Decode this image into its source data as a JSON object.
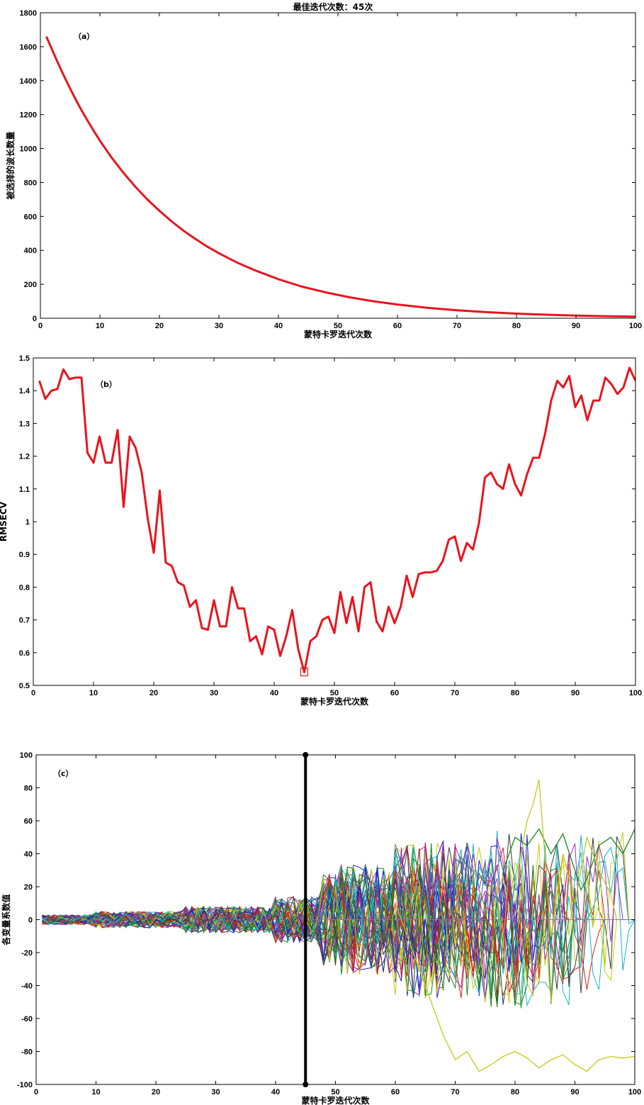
{
  "title": "最佳迭代次数：45次",
  "chart_data": [
    {
      "type": "line",
      "annotation": "（a）",
      "xlabel": "蒙特卡罗迭代次数",
      "ylabel": "被选择的波长数量",
      "xlim": [
        0,
        100
      ],
      "ylim": [
        0,
        1800
      ],
      "xticks": [
        0,
        10,
        20,
        30,
        40,
        50,
        60,
        70,
        80,
        90,
        100
      ],
      "yticks": [
        0,
        200,
        400,
        600,
        800,
        1000,
        1200,
        1400,
        1600,
        1800
      ],
      "color": "#e8141e",
      "x": [
        1,
        2,
        3,
        4,
        5,
        6,
        7,
        8,
        9,
        10,
        12,
        14,
        16,
        18,
        20,
        22,
        24,
        26,
        28,
        30,
        33,
        36,
        40,
        44,
        48,
        52,
        56,
        60,
        65,
        70,
        75,
        80,
        85,
        90,
        95,
        100
      ],
      "values": [
        1660,
        1580,
        1500,
        1425,
        1353,
        1285,
        1220,
        1160,
        1102,
        1046,
        945,
        855,
        773,
        699,
        633,
        572,
        517,
        468,
        423,
        383,
        329,
        283,
        230,
        186,
        152,
        123,
        100,
        81,
        62,
        47,
        36,
        27,
        21,
        16,
        12,
        9
      ]
    },
    {
      "type": "line",
      "annotation": "（b）",
      "xlabel": "蒙特卡罗迭代次数",
      "ylabel": "RMSECV",
      "xlim": [
        0,
        100
      ],
      "ylim": [
        0.5,
        1.5
      ],
      "xticks": [
        0,
        10,
        20,
        30,
        40,
        50,
        60,
        70,
        80,
        90,
        100
      ],
      "yticks": [
        0.5,
        0.6,
        0.7,
        0.8,
        0.9,
        1,
        1.1,
        1.2,
        1.3,
        1.4,
        1.5
      ],
      "color": "#e8141e",
      "marker": {
        "x": 45,
        "y": 0.54
      },
      "x": [
        1,
        2,
        3,
        4,
        5,
        6,
        7,
        8,
        9,
        10,
        11,
        12,
        13,
        14,
        15,
        16,
        17,
        18,
        19,
        20,
        21,
        22,
        23,
        24,
        25,
        26,
        27,
        28,
        29,
        30,
        31,
        32,
        33,
        34,
        35,
        36,
        37,
        38,
        39,
        40,
        41,
        42,
        43,
        44,
        45,
        46,
        47,
        48,
        49,
        50,
        51,
        52,
        53,
        54,
        55,
        56,
        57,
        58,
        59,
        60,
        61,
        62,
        63,
        64,
        65,
        66,
        67,
        68,
        69,
        70,
        71,
        72,
        73,
        74,
        75,
        76,
        77,
        78,
        79,
        80,
        81,
        82,
        83,
        84,
        85,
        86,
        87,
        88,
        89,
        90,
        91,
        92,
        93,
        94,
        95,
        96,
        97,
        98,
        99,
        100
      ],
      "values": [
        1.43,
        1.375,
        1.4,
        1.405,
        1.465,
        1.435,
        1.44,
        1.44,
        1.21,
        1.18,
        1.26,
        1.18,
        1.18,
        1.28,
        1.045,
        1.26,
        1.225,
        1.15,
        1.01,
        0.905,
        1.095,
        0.875,
        0.865,
        0.815,
        0.805,
        0.74,
        0.76,
        0.675,
        0.67,
        0.76,
        0.68,
        0.68,
        0.8,
        0.735,
        0.735,
        0.635,
        0.65,
        0.595,
        0.68,
        0.67,
        0.59,
        0.65,
        0.73,
        0.61,
        0.54,
        0.635,
        0.65,
        0.7,
        0.71,
        0.66,
        0.785,
        0.69,
        0.77,
        0.665,
        0.8,
        0.815,
        0.695,
        0.665,
        0.74,
        0.69,
        0.74,
        0.835,
        0.77,
        0.84,
        0.845,
        0.845,
        0.85,
        0.88,
        0.945,
        0.955,
        0.88,
        0.935,
        0.915,
        0.995,
        1.135,
        1.15,
        1.115,
        1.1,
        1.175,
        1.115,
        1.08,
        1.145,
        1.195,
        1.195,
        1.27,
        1.37,
        1.43,
        1.41,
        1.445,
        1.35,
        1.385,
        1.31,
        1.37,
        1.37,
        1.44,
        1.42,
        1.39,
        1.41,
        1.47,
        1.43
      ]
    },
    {
      "type": "line",
      "annotation": "（c）",
      "xlabel": "蒙特卡罗迭代次数",
      "ylabel": "各变量系数值",
      "xlim": [
        0,
        100
      ],
      "ylim": [
        -100,
        100
      ],
      "xticks": [
        0,
        10,
        20,
        30,
        40,
        50,
        60,
        70,
        80,
        90,
        100
      ],
      "yticks": [
        -100,
        -80,
        -60,
        -40,
        -20,
        0,
        20,
        40,
        60,
        80,
        100
      ],
      "vline_x": 45,
      "palette": [
        "#1f1fd0",
        "#138a13",
        "#e01b1b",
        "#19b5c4",
        "#9b2fb0",
        "#c8c81a",
        "#3a3a3a"
      ],
      "series_count": 60,
      "series": [
        {
          "color": "#c8c81a",
          "x": [
            60,
            64,
            68,
            70,
            72,
            74,
            76,
            78,
            80,
            82,
            84,
            86,
            88,
            90,
            92,
            94,
            96,
            98,
            100
          ],
          "values": [
            10,
            -30,
            -70,
            -85,
            -80,
            -92,
            -88,
            -83,
            -80,
            -84,
            -90,
            -85,
            -82,
            -88,
            -92,
            -85,
            -83,
            -84,
            -83
          ]
        },
        {
          "color": "#138a13",
          "x": [
            78,
            80,
            82,
            84,
            86,
            88,
            90,
            91,
            92,
            94,
            96,
            98,
            100
          ],
          "values": [
            30,
            50,
            45,
            55,
            40,
            52,
            30,
            18,
            25,
            45,
            50,
            40,
            55
          ]
        },
        {
          "color": "#c8c81a",
          "x": [
            80,
            82,
            83,
            84,
            86,
            88,
            90,
            92,
            94,
            96,
            97
          ],
          "values": [
            20,
            60,
            70,
            85,
            -10,
            40,
            10,
            50,
            30,
            15,
            0
          ]
        }
      ]
    }
  ]
}
